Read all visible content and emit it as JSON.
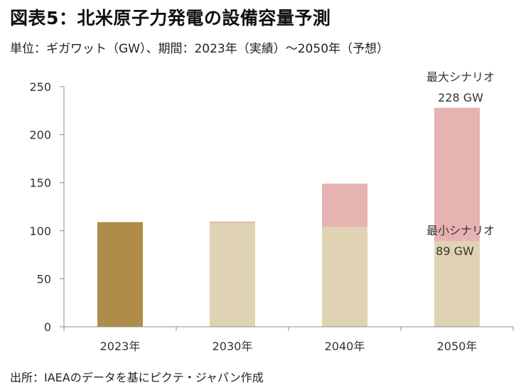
{
  "title": "図表5：北米原子力発電の設備容量予測",
  "subtitle": "単位：ギガワット（GW）、期間：2023年（実績）～2050年（予想）",
  "source": "出所：IAEAのデータを基にピクテ・ジャパン作成",
  "colors": {
    "actual": "#b08c4a",
    "minimum": "#e0d3b3",
    "maximum_extra": "#e6b3b2",
    "axis": "#8c8c8c",
    "text": "#333333"
  },
  "chart_data": {
    "type": "bar",
    "stacked": true,
    "categories": [
      "2023年",
      "2030年",
      "2040年",
      "2050年"
    ],
    "series": [
      {
        "key": "actual",
        "values": [
          109,
          0,
          0,
          0
        ],
        "color": "#b08c4a"
      },
      {
        "key": "minimum",
        "values": [
          0,
          108,
          104,
          89
        ],
        "color": "#e0d3b3"
      },
      {
        "key": "maximum_extra",
        "values": [
          0,
          1.5,
          45,
          139
        ],
        "color": "#e6b3b2"
      }
    ],
    "ylim": [
      0,
      250
    ],
    "yticks": [
      0,
      50,
      100,
      150,
      200,
      250
    ],
    "grid": false,
    "annotations": {
      "max_label": "最大シナリオ",
      "max_value": "228 GW",
      "min_label": "最小シナリオ",
      "min_value": "89 GW"
    }
  }
}
